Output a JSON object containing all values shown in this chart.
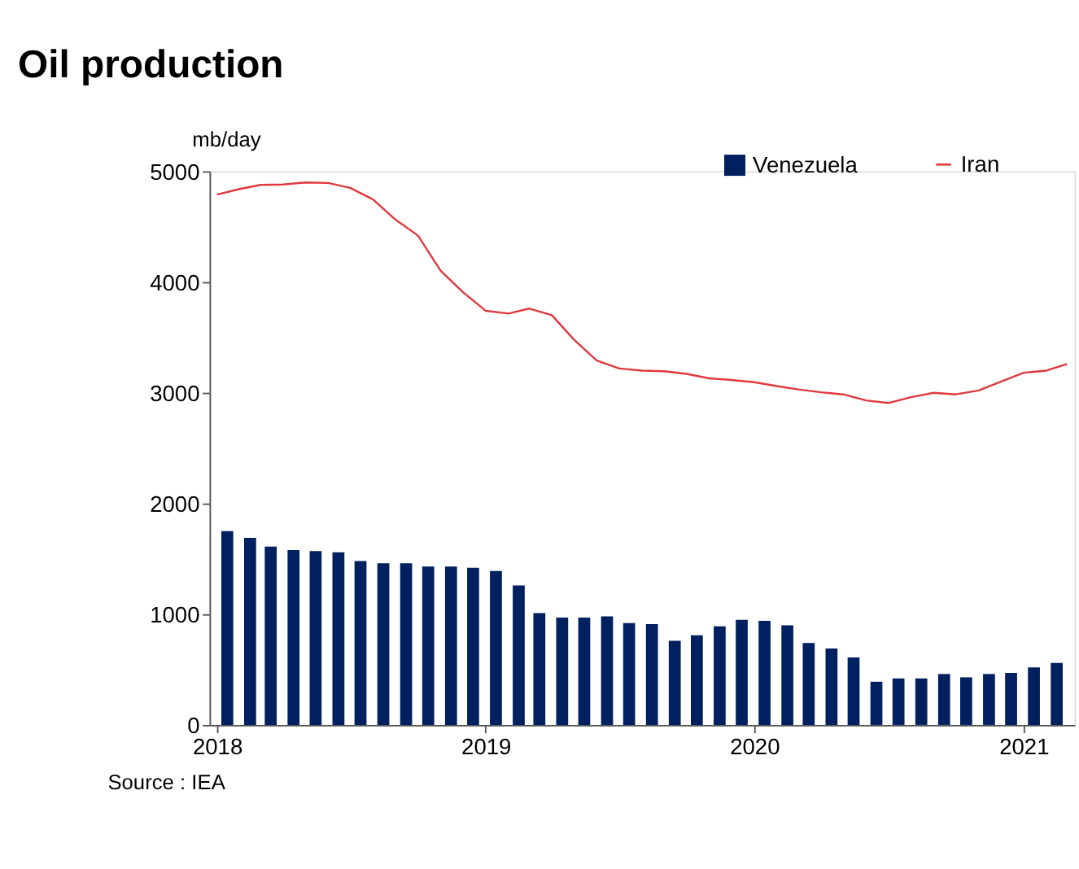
{
  "chart_data": {
    "type": "bar",
    "title": "Oil production",
    "ylabel": "mb/day",
    "x": [
      "2018-01-15",
      "2018-02-15",
      "2018-03-15",
      "2018-04-15",
      "2018-05-15",
      "2018-06-15",
      "2018-07-15",
      "2018-08-15",
      "2018-09-15",
      "2018-10-15",
      "2018-11-15",
      "2018-12-15",
      "2019-01-15",
      "2019-02-15",
      "2019-03-15",
      "2019-04-15",
      "2019-05-15",
      "2019-06-15",
      "2019-07-15",
      "2019-08-15",
      "2019-09-15",
      "2019-10-15",
      "2019-11-15",
      "2019-12-15",
      "2020-01-15",
      "2020-02-15",
      "2020-03-15",
      "2020-04-15",
      "2020-05-15",
      "2020-06-15",
      "2020-07-15",
      "2020-08-15",
      "2020-09-15",
      "2020-10-15",
      "2020-11-15",
      "2020-12-15",
      "2021-01-15",
      "2021-02-15"
    ],
    "series": [
      {
        "name": "Venezuela",
        "color": "#002060",
        "values": [
          1750,
          1690,
          1610,
          1580,
          1570,
          1560,
          1480,
          1460,
          1460,
          1430,
          1430,
          1420,
          1390,
          1260,
          1010,
          970,
          970,
          980,
          920,
          910,
          760,
          810,
          890,
          950,
          940,
          900,
          740,
          690,
          610,
          390,
          420,
          420,
          460,
          430,
          460,
          470,
          520,
          560
        ]
      },
      {
        "name": "Iran",
        "type": "line",
        "color": "#e0393e",
        "x": [
          "2018-01-01",
          "2018-02-01",
          "2018-03-01",
          "2018-04-01",
          "2018-05-01",
          "2018-06-01",
          "2018-07-01",
          "2018-08-01",
          "2018-09-01",
          "2018-10-01",
          "2018-11-01",
          "2018-12-01",
          "2019-01-01",
          "2019-02-01",
          "2019-03-01",
          "2019-04-01",
          "2019-05-01",
          "2019-06-01",
          "2019-07-01",
          "2019-08-01",
          "2019-09-01",
          "2019-10-01",
          "2019-11-01",
          "2019-12-01",
          "2020-01-01",
          "2020-02-01",
          "2020-03-01",
          "2020-04-01",
          "2020-05-01",
          "2020-06-01",
          "2020-07-01",
          "2020-08-01",
          "2020-09-01",
          "2020-10-01",
          "2020-11-01",
          "2020-12-01",
          "2021-01-01",
          "2021-02-01",
          "2021-03-01"
        ],
        "values": [
          4790,
          4840,
          4877,
          4880,
          4899,
          4894,
          4850,
          4745,
          4560,
          4420,
          4100,
          3910,
          3740,
          3715,
          3760,
          3700,
          3480,
          3290,
          3220,
          3200,
          3194,
          3170,
          3130,
          3115,
          3095,
          3060,
          3030,
          3004,
          2985,
          2930,
          2907,
          2960,
          2999,
          2985,
          3020,
          3100,
          3180,
          3200,
          3260
        ]
      }
    ],
    "xlim": [
      "2018-01-01",
      "2021-03-01"
    ],
    "xticks": [
      {
        "value": "2018-01-01",
        "label": "2018"
      },
      {
        "value": "2019-01-01",
        "label": "2019"
      },
      {
        "value": "2020-01-01",
        "label": "2020"
      },
      {
        "value": "2021-01-01",
        "label": "2021"
      }
    ],
    "ylim": [
      0,
      5000
    ],
    "yticks": [
      0,
      1000,
      2000,
      3000,
      4000,
      5000
    ],
    "grid": false,
    "legend": "top right",
    "annotations": [
      "Source : IEA"
    ]
  }
}
